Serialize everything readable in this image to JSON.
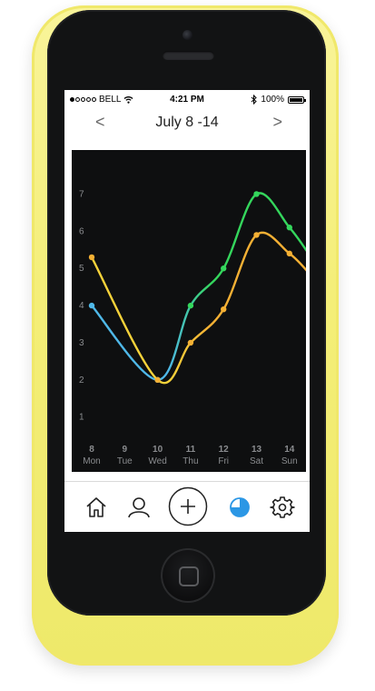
{
  "status_bar": {
    "carrier": "BELL",
    "time": "4:21 PM",
    "battery": "100%"
  },
  "nav": {
    "title": "July 8 -14",
    "prev": "<",
    "next": ">"
  },
  "chart_data": {
    "type": "line",
    "categories": [
      "8 Mon",
      "9 Tue",
      "10 Wed",
      "11 Thu",
      "12 Fri",
      "13 Sat",
      "14 Sun"
    ],
    "x_tick_numbers": [
      "8",
      "9",
      "10",
      "11",
      "12",
      "13",
      "14"
    ],
    "x_tick_days": [
      "Mon",
      "Tue",
      "Wed",
      "Thu",
      "Fri",
      "Sat",
      "Sun"
    ],
    "y_ticks": [
      1,
      2,
      3,
      4,
      5,
      6,
      7
    ],
    "ylim": [
      0.7,
      7.5
    ],
    "grid": false,
    "series": [
      {
        "values": [
          4.0,
          null,
          2.0,
          4.0,
          5.0,
          7.0,
          6.1
        ],
        "color": "#34d65c",
        "color_alt": "#4fb8e8"
      },
      {
        "values": [
          5.3,
          null,
          2.0,
          3.0,
          3.9,
          5.9,
          5.4
        ],
        "color": "#f4b034",
        "color_alt": "#f5d23a"
      }
    ]
  },
  "tabbar": {
    "icons": [
      "home-icon",
      "profile-icon",
      "add-icon",
      "stats-icon",
      "settings-icon"
    ],
    "active_color": "#2b97e5"
  }
}
